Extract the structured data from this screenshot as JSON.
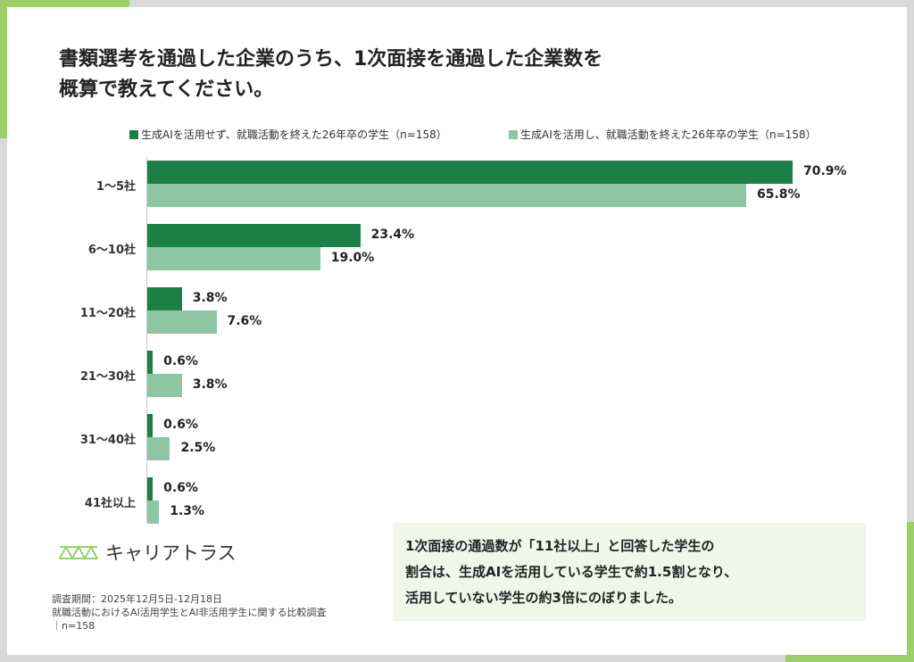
{
  "title_lines": [
    "書類選考を通過した企業のうち、1次面接を通過した企業数を",
    "概算で教えてください。"
  ],
  "colors": {
    "series1": "#1b7f46",
    "series2": "#8ec5a3",
    "accent": "#9ccf6a",
    "box": "#f0f6e8"
  },
  "chart_data": {
    "type": "bar",
    "orientation": "horizontal",
    "title": "書類選考を通過した企業のうち、1次面接を通過した企業数を概算で教えてください。",
    "categories": [
      "1～5社",
      "6～10社",
      "11～20社",
      "21～30社",
      "31～40社",
      "41社以上"
    ],
    "series": [
      {
        "name": "生成AIを活用せず、就職活動を終えた26年卒の学生（n=158）",
        "values": [
          70.9,
          23.4,
          3.8,
          0.6,
          0.6,
          0.6
        ],
        "labels": [
          "70.9%",
          "23.4%",
          "3.8%",
          "0.6%",
          "0.6%",
          "0.6%"
        ]
      },
      {
        "name": "生成AIを活用し、就職活動を終えた26年卒の学生（n=158）",
        "values": [
          65.8,
          19.0,
          7.6,
          3.8,
          2.5,
          1.3
        ],
        "labels": [
          "65.8%",
          "19.0%",
          "7.6%",
          "3.8%",
          "2.5%",
          "1.3%"
        ]
      }
    ],
    "unit": "%",
    "legend": "top",
    "grid": false
  },
  "logo": {
    "text": "キャリアトラス"
  },
  "notes": [
    "調査期間：2025年12月5日-12月18日",
    "就職活動におけるAI活用学生とAI非活用学生に関する比較調査",
    "｜n=158"
  ],
  "summary": [
    "1次面接の通過数が「11社以上」と回答した学生の",
    "割合は、生成AIを活用している学生で約1.5割となり、",
    "活用していない学生の約3倍にのぼりました。"
  ]
}
